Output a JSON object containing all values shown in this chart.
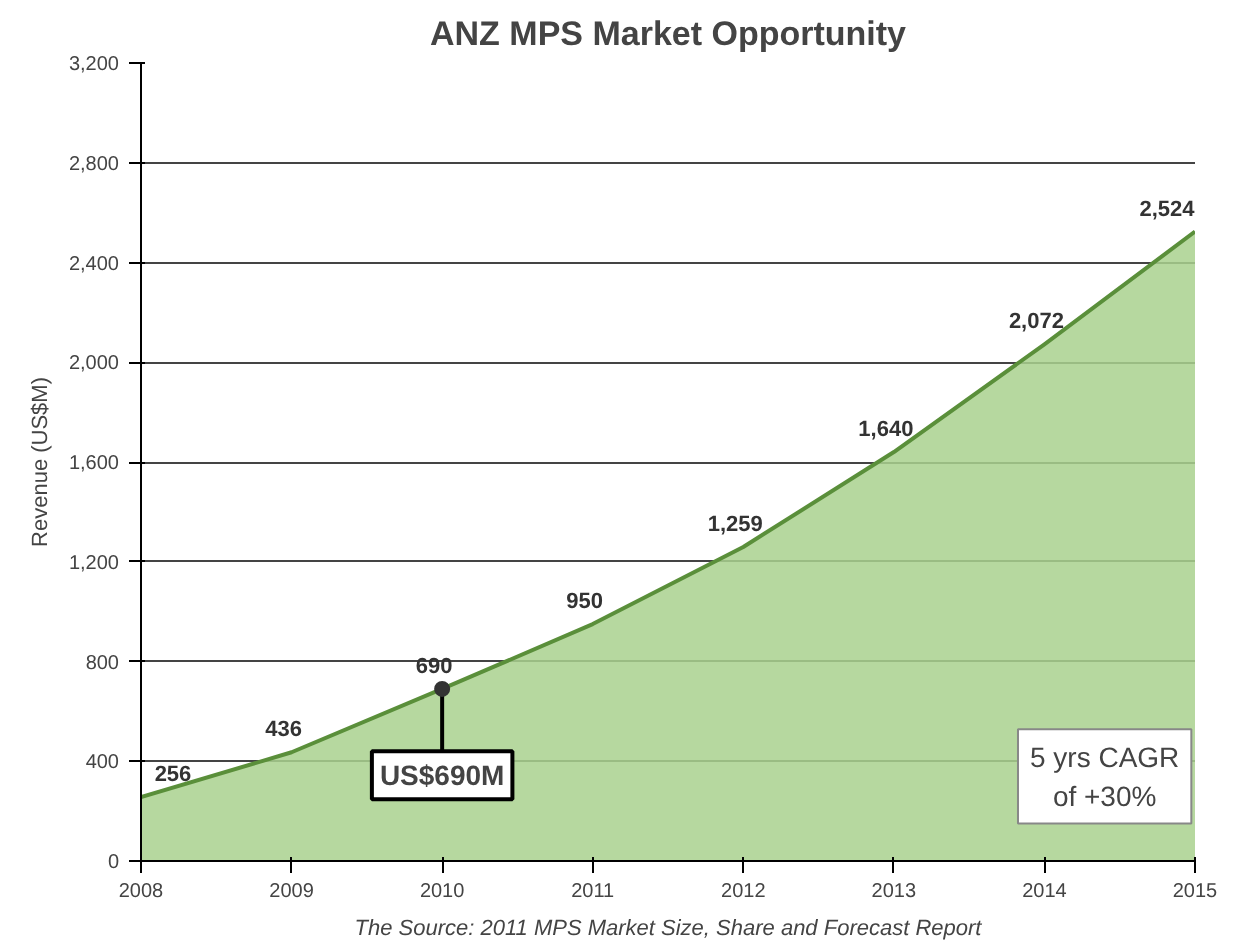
{
  "chart_data": {
    "type": "area",
    "title": "ANZ MPS Market Opportunity",
    "ylabel": "Revenue (US$M)",
    "x": [
      2008,
      2009,
      2010,
      2011,
      2012,
      2013,
      2014,
      2015
    ],
    "series": [
      {
        "color": "#a9d18e",
        "values": [
          256,
          436,
          690,
          950,
          1259,
          1640,
          2072,
          2524
        ]
      }
    ],
    "value_labels": [
      "256",
      "436",
      "690",
      "950",
      "1,259",
      "1,640",
      "2,072",
      "2,524"
    ],
    "xlim": [
      2008,
      2015
    ],
    "xticks": [
      2008,
      2009,
      2010,
      2011,
      2012,
      2013,
      2014,
      2015
    ],
    "ylim": [
      0,
      3200
    ],
    "yticks": [
      0,
      {
        "value": 400,
        "label": "400"
      },
      {
        "value": 800,
        "label": "800"
      },
      {
        "value": 1200,
        "label": "1,200"
      },
      {
        "value": 1600,
        "label": "1,600"
      },
      {
        "value": 2000,
        "label": "2,000"
      },
      {
        "value": 2400,
        "label": "2,400"
      },
      {
        "value": 2800,
        "label": "2,800"
      },
      {
        "value": 3200,
        "label": "3,200"
      }
    ],
    "grid": "y",
    "annotations": [
      {
        "text": "US$690M",
        "x": 2010,
        "y": 690
      },
      "5 yrs CAGR\nof +30%",
      "The Source: 2011 MPS Market Size, Share and Forecast Report"
    ]
  }
}
